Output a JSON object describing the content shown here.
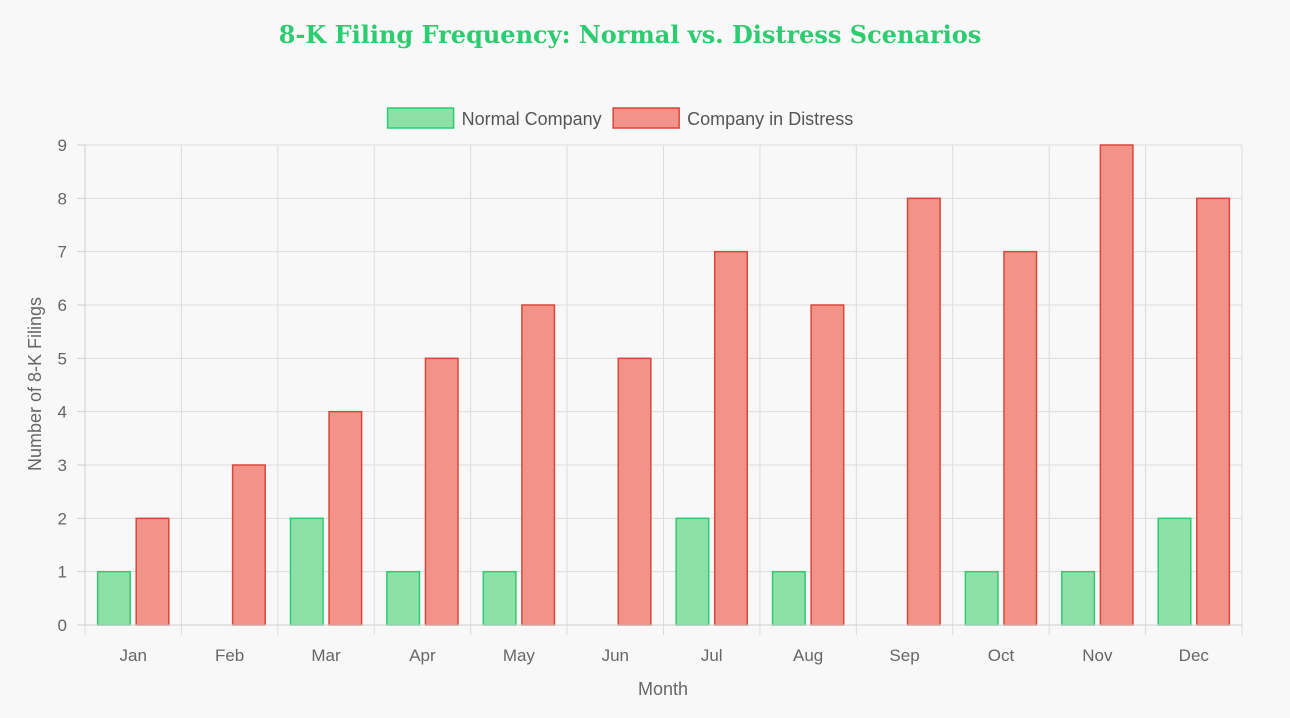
{
  "chart_data": {
    "type": "bar",
    "title": "8-K Filing Frequency: Normal vs. Distress Scenarios",
    "xlabel": "Month",
    "ylabel": "Number of 8-K Filings",
    "categories": [
      "Jan",
      "Feb",
      "Mar",
      "Apr",
      "May",
      "Jun",
      "Jul",
      "Aug",
      "Sep",
      "Oct",
      "Nov",
      "Dec"
    ],
    "ylim": [
      0,
      9
    ],
    "yticks": [
      0,
      1,
      2,
      3,
      4,
      5,
      6,
      7,
      8,
      9
    ],
    "grid": true,
    "legend_position": "top-center",
    "series": [
      {
        "name": "Normal Company",
        "values": [
          1,
          0,
          2,
          1,
          1,
          0,
          2,
          1,
          0,
          1,
          1,
          2
        ],
        "fill": "#8ce0a8",
        "stroke": "#2ecc71"
      },
      {
        "name": "Company in Distress",
        "values": [
          2,
          3,
          4,
          5,
          6,
          5,
          7,
          6,
          8,
          7,
          9,
          8
        ],
        "fill": "#f19388",
        "stroke": "#d9473b"
      }
    ]
  }
}
